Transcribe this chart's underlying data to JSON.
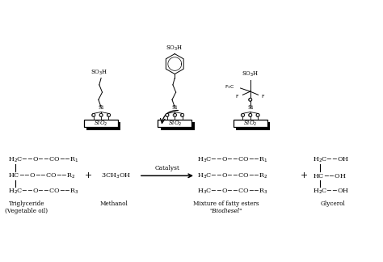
{
  "bg_color": "#ffffff",
  "line_color": "#000000",
  "fig_width": 4.74,
  "fig_height": 3.24,
  "dpi": 100,
  "xlim": [
    0,
    10
  ],
  "ylim": [
    0,
    7
  ]
}
